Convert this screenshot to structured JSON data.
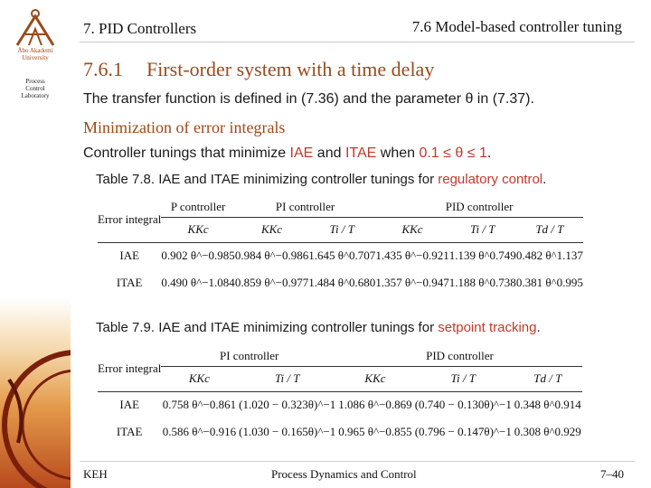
{
  "branding": {
    "university_lines": [
      "Åbo Akademi",
      "University"
    ],
    "lab_lines": [
      "Process",
      "Control",
      "Laboratory"
    ],
    "accent_color": "#9b4a1a"
  },
  "header": {
    "chapter": "7. PID Controllers",
    "section": "7.6 Model-based controller tuning"
  },
  "section": {
    "number": "7.6.1",
    "title": "First-order system with a time delay"
  },
  "body": {
    "line1": "The transfer function is defined in (7.36) and the parameter  θ  in (7.37).",
    "subheading": "Minimization of error integrals",
    "line2_a": "Controller tunings that minimize ",
    "line2_iae": "IAE",
    "line2_and": " and ",
    "line2_itae": "ITAE",
    "line2_when": " when ",
    "line2_cond": "0.1 ≤ θ ≤ 1",
    "line2_end": "."
  },
  "table1": {
    "caption_a": "Table 7.8. IAE and ITAE minimizing controller tunings for ",
    "caption_b": "regulatory control",
    "caption_end": ".",
    "row_header": "Error integral",
    "groups": [
      "P controller",
      "PI controller",
      "PID controller"
    ],
    "symbols": [
      "KKc",
      "KKc",
      "Ti / T",
      "KKc",
      "Ti / T",
      "Td / T"
    ],
    "rows": [
      {
        "label": "IAE",
        "cells": [
          "0.902 θ^−0.985",
          "0.984 θ^−0.986",
          "1.645 θ^0.707",
          "1.435 θ^−0.921",
          "1.139 θ^0.749",
          "0.482 θ^1.137"
        ]
      },
      {
        "label": "ITAE",
        "cells": [
          "0.490 θ^−1.084",
          "0.859 θ^−0.977",
          "1.484 θ^0.680",
          "1.357 θ^−0.947",
          "1.188 θ^0.738",
          "0.381 θ^0.995"
        ]
      }
    ]
  },
  "table2": {
    "caption_a": "Table 7.9. IAE and ITAE minimizing controller tunings for ",
    "caption_b": "setpoint tracking",
    "caption_end": ".",
    "row_header": "Error integral",
    "groups": [
      "PI controller",
      "PID controller"
    ],
    "symbols": [
      "KKc",
      "Ti / T",
      "KKc",
      "Ti / T",
      "Td / T"
    ],
    "rows": [
      {
        "label": "IAE",
        "cells": [
          "0.758 θ^−0.861",
          "(1.020 − 0.323θ)^−1",
          "1.086 θ^−0.869",
          "(0.740 − 0.130θ)^−1",
          "0.348 θ^0.914"
        ]
      },
      {
        "label": "ITAE",
        "cells": [
          "0.586 θ^−0.916",
          "(1.030 − 0.165θ)^−1",
          "0.965 θ^−0.855",
          "(0.796 − 0.147θ)^−1",
          "0.308 θ^0.929"
        ]
      }
    ]
  },
  "footer": {
    "author": "KEH",
    "course": "Process Dynamics and Control",
    "page": "7–40"
  }
}
